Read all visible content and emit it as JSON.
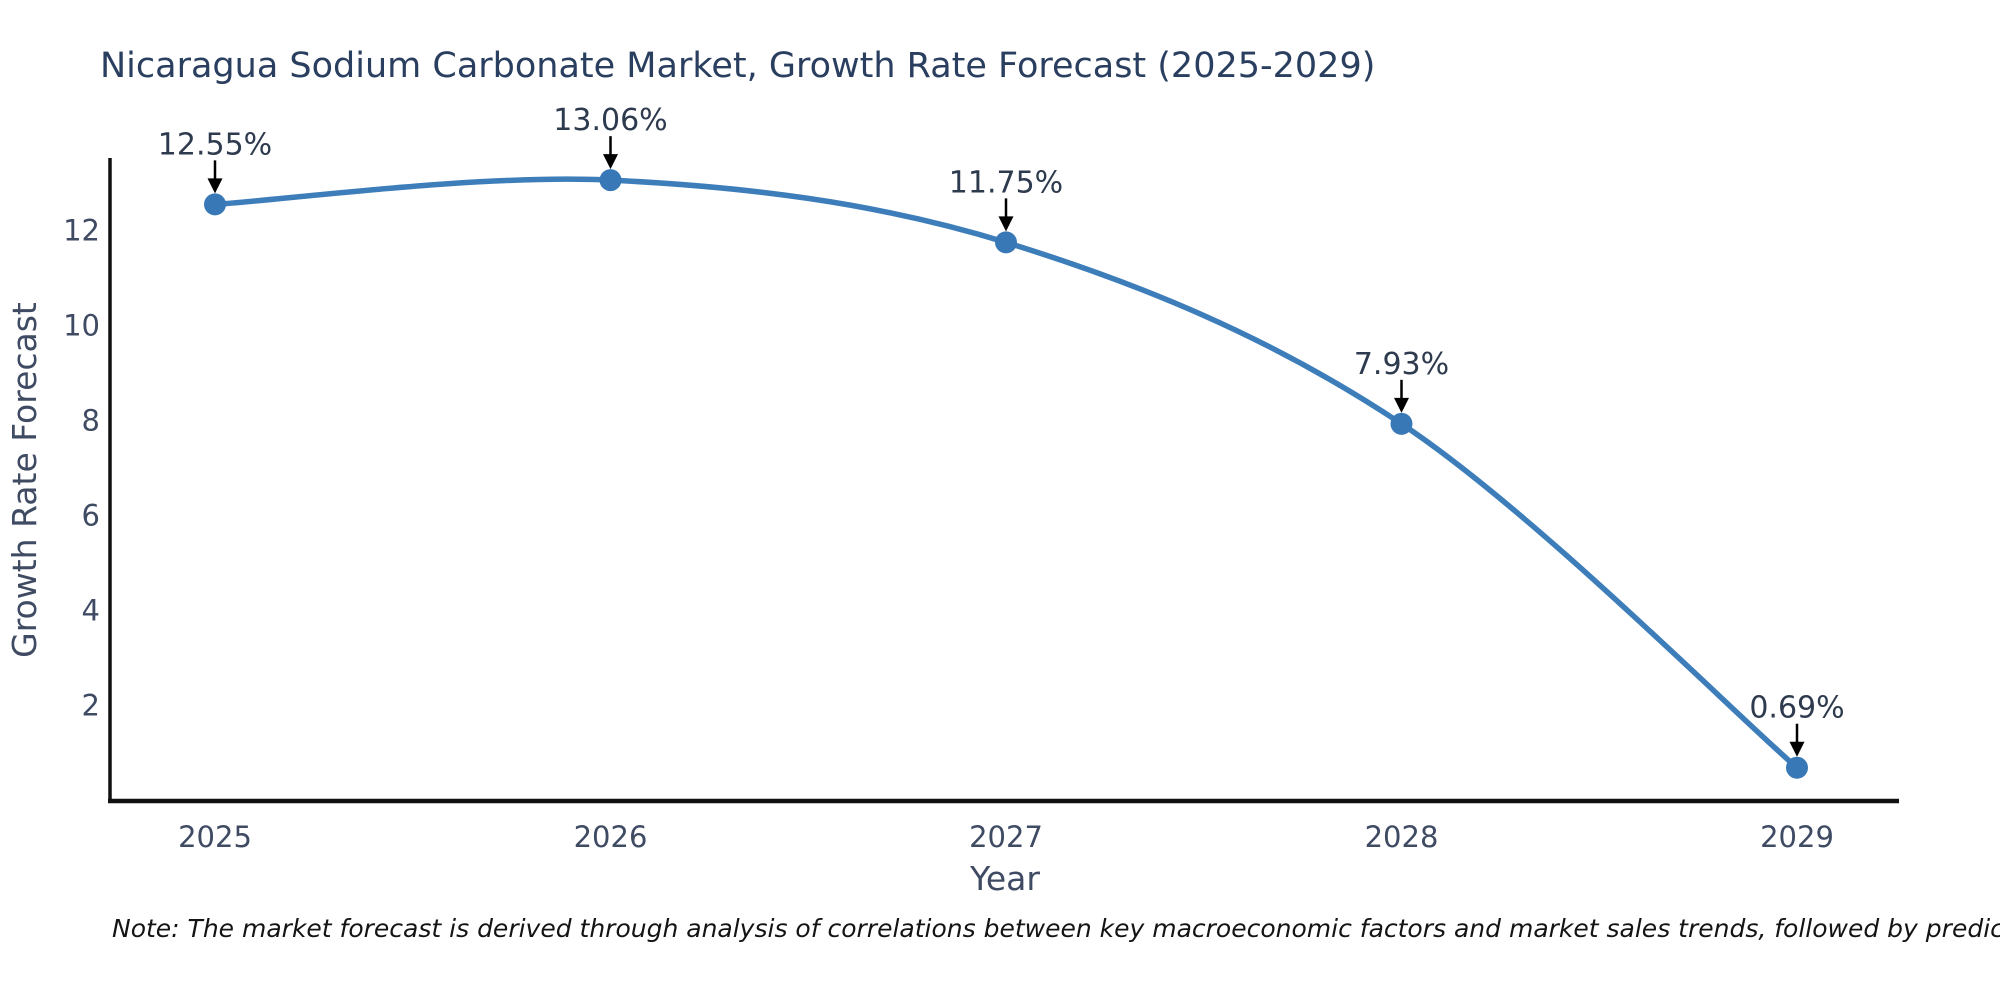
{
  "title": "Nicaragua Sodium Carbonate Market, Growth Rate Forecast (2025-2029)",
  "note": "Note: The market forecast is derived through analysis of correlations between key macroeconomic factors and market sales trends, followed by predictive modeling to project future sales",
  "chart_data": {
    "type": "line",
    "title": "Nicaragua Sodium Carbonate Market, Growth Rate Forecast (2025-2029)",
    "xlabel": "Year",
    "ylabel": "Growth Rate Forecast",
    "x": [
      2025,
      2026,
      2027,
      2028,
      2029
    ],
    "values": [
      12.55,
      13.06,
      11.75,
      7.93,
      0.69
    ],
    "point_labels": [
      "12.55%",
      "13.06%",
      "11.75%",
      "7.93%",
      "0.69%"
    ],
    "yticks": [
      2,
      4,
      6,
      8,
      10,
      12
    ],
    "ylim": [
      0,
      13.5
    ],
    "xlim": [
      2024.73,
      2029.26
    ],
    "grid": false,
    "legend_position": "none",
    "line_shape": "spline",
    "line_color": "#3d7eba",
    "marker_color": "#3878b6",
    "arrow_color": "#000000",
    "axis_color": "#111111",
    "tick_color": "#3f4a63",
    "title_color": "#2a3f5f"
  }
}
